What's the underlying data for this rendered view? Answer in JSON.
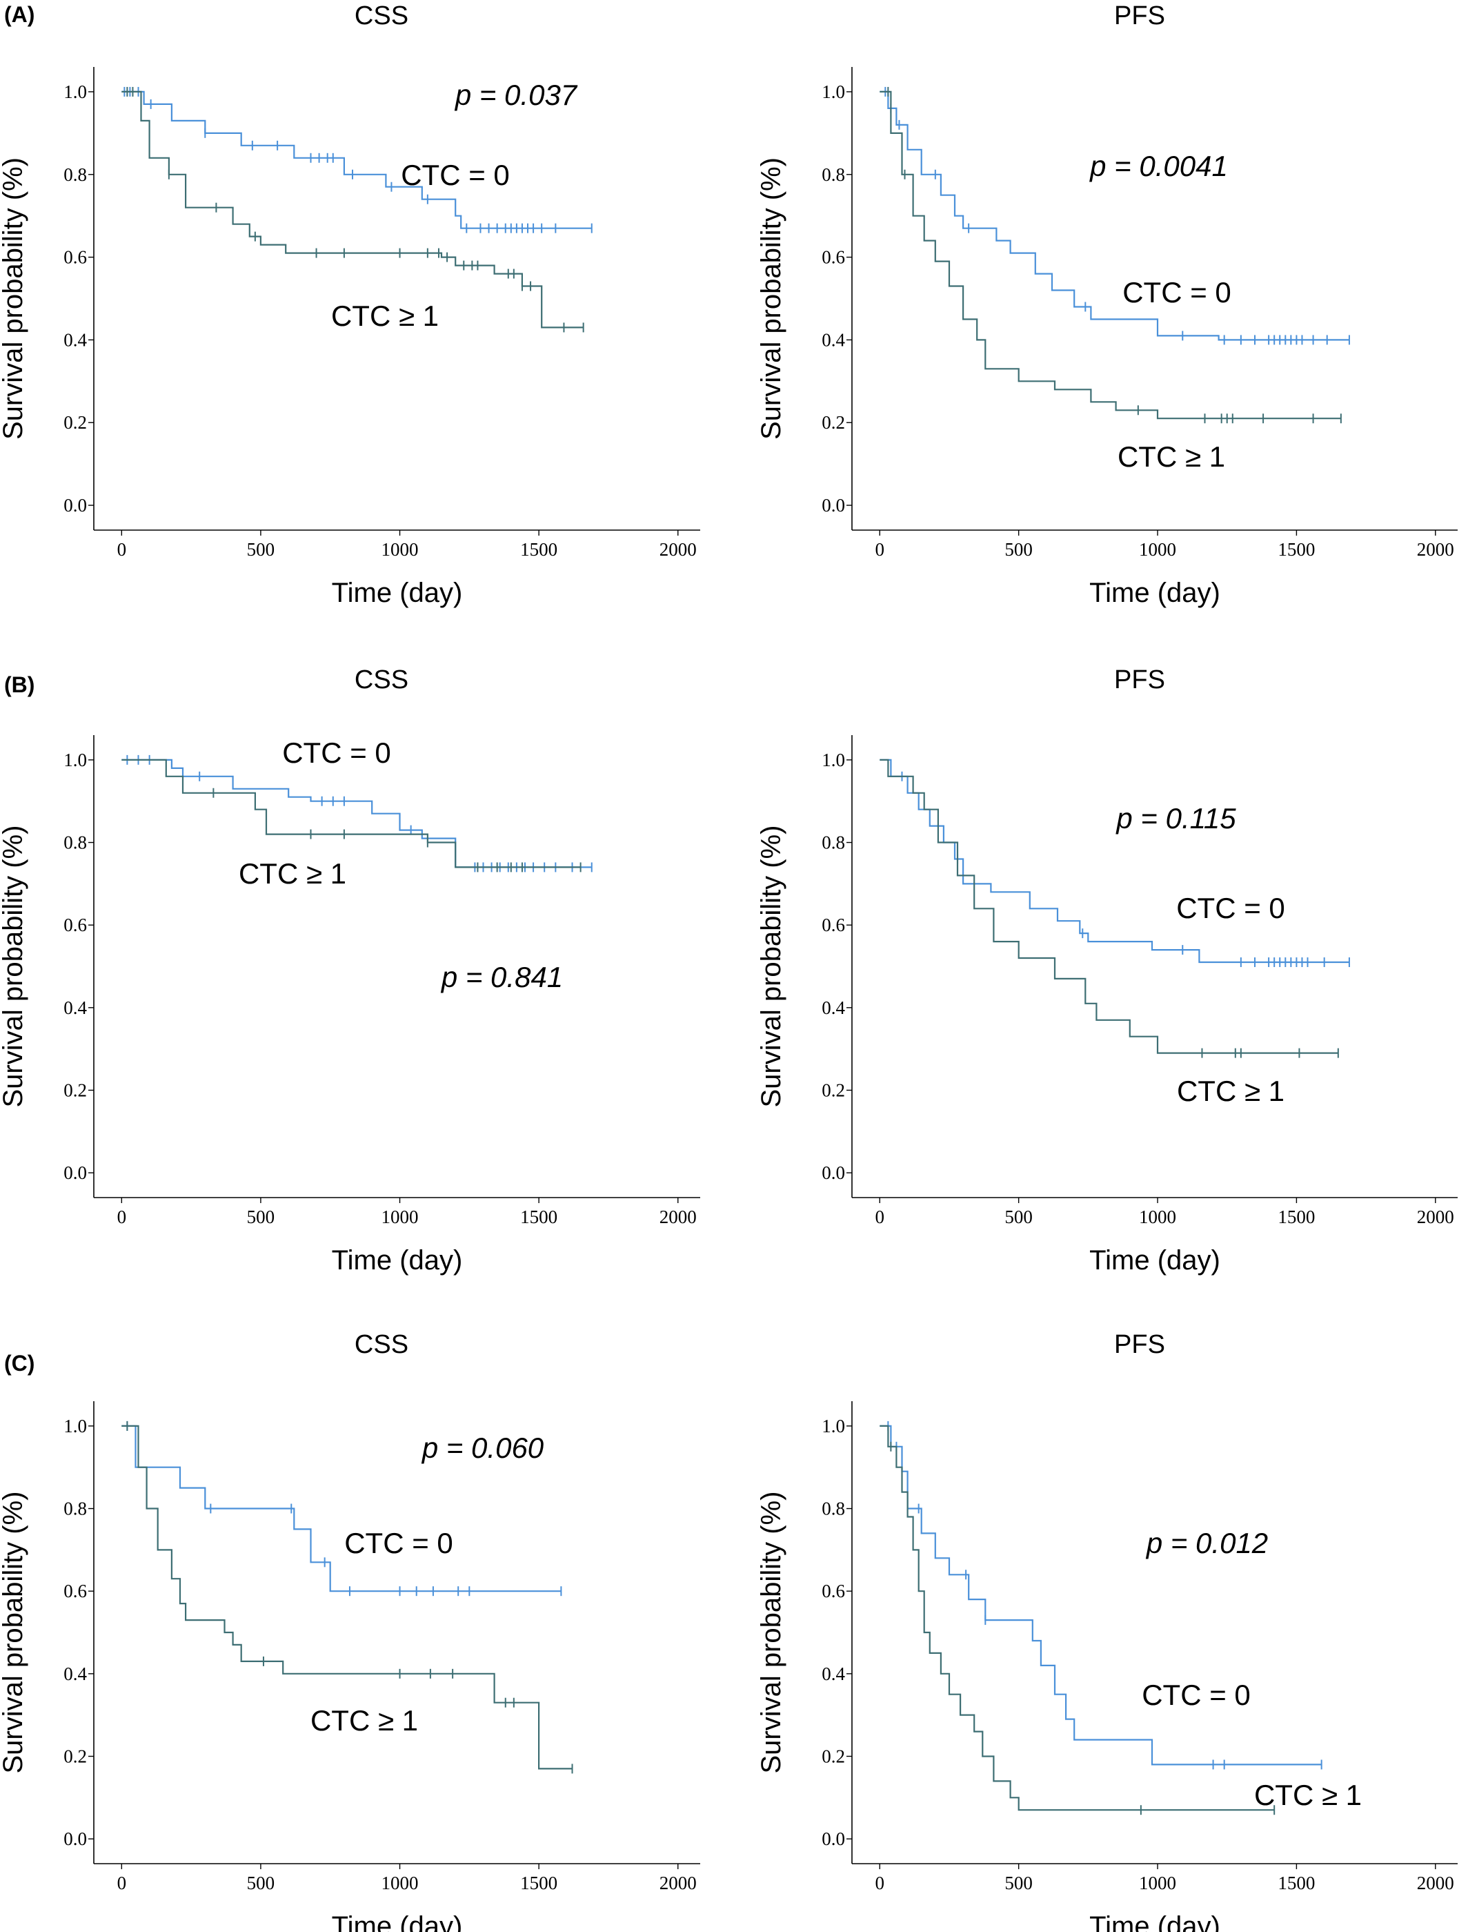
{
  "figure": {
    "panel_labels": [
      "(A)",
      "(B)",
      "(C)"
    ]
  },
  "chart_data": [
    {
      "type": "line",
      "panel": "(A)",
      "title": "CSS",
      "xlabel": "Time (day)",
      "ylabel": "Survival probability (%)",
      "xlim": [
        -100,
        2080
      ],
      "ylim": [
        -0.06,
        1.06
      ],
      "xticks": [
        "0",
        "500",
        "1000",
        "1500",
        "2000"
      ],
      "yticks": [
        "0.0",
        "0.2",
        "0.4",
        "0.6",
        "0.8",
        "1.0"
      ],
      "p_value": "p = 0.037",
      "series": [
        {
          "name": "CTC = 0",
          "color": "#4a90d9",
          "steps": [
            [
              0,
              1.0
            ],
            [
              80,
              0.97
            ],
            [
              180,
              0.93
            ],
            [
              300,
              0.9
            ],
            [
              430,
              0.87
            ],
            [
              620,
              0.84
            ],
            [
              800,
              0.8
            ],
            [
              950,
              0.77
            ],
            [
              1080,
              0.74
            ],
            [
              1200,
              0.7
            ],
            [
              1220,
              0.67
            ],
            [
              1690,
              0.67
            ]
          ],
          "censor": [
            10,
            30,
            60,
            105,
            300,
            470,
            560,
            680,
            710,
            740,
            760,
            830,
            970,
            1100,
            1240,
            1290,
            1320,
            1350,
            1380,
            1400,
            1420,
            1440,
            1460,
            1480,
            1510,
            1560,
            1690
          ]
        },
        {
          "name": "CTC ≥ 1",
          "color": "#3d6e73",
          "steps": [
            [
              0,
              1.0
            ],
            [
              70,
              0.93
            ],
            [
              100,
              0.84
            ],
            [
              170,
              0.8
            ],
            [
              230,
              0.72
            ],
            [
              400,
              0.68
            ],
            [
              460,
              0.65
            ],
            [
              500,
              0.63
            ],
            [
              590,
              0.61
            ],
            [
              1150,
              0.6
            ],
            [
              1200,
              0.58
            ],
            [
              1340,
              0.56
            ],
            [
              1440,
              0.53
            ],
            [
              1510,
              0.43
            ],
            [
              1660,
              0.43
            ]
          ],
          "censor": [
            20,
            40,
            170,
            340,
            480,
            700,
            800,
            1000,
            1100,
            1140,
            1170,
            1230,
            1260,
            1280,
            1390,
            1410,
            1440,
            1470,
            1590,
            1660
          ]
        }
      ]
    },
    {
      "type": "line",
      "panel": "(A)",
      "title": "PFS",
      "xlabel": "Time (day)",
      "ylabel": "Survival probability (%)",
      "xlim": [
        -100,
        2080
      ],
      "ylim": [
        -0.06,
        1.06
      ],
      "xticks": [
        "0",
        "500",
        "1000",
        "1500",
        "2000"
      ],
      "yticks": [
        "0.0",
        "0.2",
        "0.4",
        "0.6",
        "0.8",
        "1.0"
      ],
      "p_value": "p = 0.0041",
      "series": [
        {
          "name": "CTC = 0",
          "color": "#4a90d9",
          "steps": [
            [
              0,
              1.0
            ],
            [
              30,
              0.96
            ],
            [
              60,
              0.92
            ],
            [
              100,
              0.86
            ],
            [
              150,
              0.8
            ],
            [
              220,
              0.75
            ],
            [
              270,
              0.7
            ],
            [
              300,
              0.67
            ],
            [
              420,
              0.64
            ],
            [
              470,
              0.61
            ],
            [
              560,
              0.56
            ],
            [
              620,
              0.52
            ],
            [
              700,
              0.48
            ],
            [
              760,
              0.45
            ],
            [
              1000,
              0.41
            ],
            [
              1220,
              0.4
            ],
            [
              1690,
              0.4
            ]
          ],
          "censor": [
            20,
            40,
            70,
            200,
            320,
            740,
            1090,
            1240,
            1300,
            1350,
            1400,
            1420,
            1440,
            1460,
            1480,
            1500,
            1520,
            1560,
            1610,
            1690
          ]
        },
        {
          "name": "CTC ≥ 1",
          "color": "#3d6e73",
          "steps": [
            [
              0,
              1.0
            ],
            [
              40,
              0.9
            ],
            [
              80,
              0.8
            ],
            [
              120,
              0.7
            ],
            [
              160,
              0.64
            ],
            [
              200,
              0.59
            ],
            [
              250,
              0.53
            ],
            [
              300,
              0.45
            ],
            [
              350,
              0.4
            ],
            [
              380,
              0.33
            ],
            [
              500,
              0.3
            ],
            [
              630,
              0.28
            ],
            [
              760,
              0.25
            ],
            [
              850,
              0.23
            ],
            [
              1000,
              0.21
            ],
            [
              1660,
              0.21
            ]
          ],
          "censor": [
            30,
            90,
            930,
            1170,
            1230,
            1250,
            1270,
            1380,
            1560,
            1660
          ]
        }
      ]
    },
    {
      "type": "line",
      "panel": "(B)",
      "title": "CSS",
      "xlabel": "Time (day)",
      "ylabel": "Survival probability (%)",
      "xlim": [
        -100,
        2080
      ],
      "ylim": [
        -0.06,
        1.06
      ],
      "xticks": [
        "0",
        "500",
        "1000",
        "1500",
        "2000"
      ],
      "yticks": [
        "0.0",
        "0.2",
        "0.4",
        "0.6",
        "0.8",
        "1.0"
      ],
      "p_value": "p = 0.841",
      "series": [
        {
          "name": "CTC = 0",
          "color": "#4a90d9",
          "steps": [
            [
              0,
              1.0
            ],
            [
              180,
              0.98
            ],
            [
              220,
              0.96
            ],
            [
              400,
              0.93
            ],
            [
              600,
              0.91
            ],
            [
              680,
              0.9
            ],
            [
              900,
              0.87
            ],
            [
              1000,
              0.83
            ],
            [
              1080,
              0.81
            ],
            [
              1200,
              0.74
            ],
            [
              1690,
              0.74
            ]
          ],
          "censor": [
            20,
            60,
            100,
            280,
            720,
            760,
            800,
            1040,
            1270,
            1300,
            1330,
            1360,
            1390,
            1420,
            1450,
            1480,
            1520,
            1560,
            1620,
            1690
          ]
        },
        {
          "name": "CTC ≥ 1",
          "color": "#3d6e73",
          "steps": [
            [
              0,
              1.0
            ],
            [
              160,
              0.96
            ],
            [
              220,
              0.92
            ],
            [
              480,
              0.88
            ],
            [
              520,
              0.82
            ],
            [
              1100,
              0.8
            ],
            [
              1200,
              0.74
            ],
            [
              1650,
              0.74
            ]
          ],
          "censor": [
            330,
            680,
            800,
            1100,
            1280,
            1350,
            1400,
            1440,
            1650
          ]
        }
      ]
    },
    {
      "type": "line",
      "panel": "(B)",
      "title": "PFS",
      "xlabel": "Time (day)",
      "ylabel": "Survival probability (%)",
      "xlim": [
        -100,
        2080
      ],
      "ylim": [
        -0.06,
        1.06
      ],
      "xticks": [
        "0",
        "500",
        "1000",
        "1500",
        "2000"
      ],
      "yticks": [
        "0.0",
        "0.2",
        "0.4",
        "0.6",
        "0.8",
        "1.0"
      ],
      "p_value": "p = 0.115",
      "series": [
        {
          "name": "CTC = 0",
          "color": "#4a90d9",
          "steps": [
            [
              0,
              1.0
            ],
            [
              40,
              0.96
            ],
            [
              100,
              0.92
            ],
            [
              140,
              0.88
            ],
            [
              180,
              0.84
            ],
            [
              230,
              0.8
            ],
            [
              270,
              0.76
            ],
            [
              300,
              0.7
            ],
            [
              400,
              0.68
            ],
            [
              540,
              0.64
            ],
            [
              640,
              0.61
            ],
            [
              720,
              0.58
            ],
            [
              750,
              0.56
            ],
            [
              980,
              0.54
            ],
            [
              1150,
              0.51
            ],
            [
              1690,
              0.51
            ]
          ],
          "censor": [
            80,
            280,
            730,
            1090,
            1300,
            1350,
            1400,
            1420,
            1440,
            1460,
            1480,
            1500,
            1520,
            1540,
            1600,
            1690
          ]
        },
        {
          "name": "CTC ≥ 1",
          "color": "#3d6e73",
          "steps": [
            [
              0,
              1.0
            ],
            [
              30,
              0.96
            ],
            [
              120,
              0.92
            ],
            [
              160,
              0.88
            ],
            [
              210,
              0.8
            ],
            [
              280,
              0.72
            ],
            [
              340,
              0.64
            ],
            [
              410,
              0.56
            ],
            [
              500,
              0.52
            ],
            [
              630,
              0.47
            ],
            [
              740,
              0.41
            ],
            [
              780,
              0.37
            ],
            [
              900,
              0.33
            ],
            [
              1000,
              0.29
            ],
            [
              1650,
              0.29
            ]
          ],
          "censor": [
            1160,
            1280,
            1300,
            1510,
            1650
          ]
        }
      ]
    },
    {
      "type": "line",
      "panel": "(C)",
      "title": "CSS",
      "xlabel": "Time (day)",
      "ylabel": "Survival probability (%)",
      "xlim": [
        -100,
        2080
      ],
      "ylim": [
        -0.06,
        1.06
      ],
      "xticks": [
        "0",
        "500",
        "1000",
        "1500",
        "2000"
      ],
      "yticks": [
        "0.0",
        "0.2",
        "0.4",
        "0.6",
        "0.8",
        "1.0"
      ],
      "p_value": "p = 0.060",
      "series": [
        {
          "name": "CTC = 0",
          "color": "#4a90d9",
          "steps": [
            [
              0,
              1.0
            ],
            [
              50,
              0.9
            ],
            [
              210,
              0.85
            ],
            [
              300,
              0.8
            ],
            [
              620,
              0.75
            ],
            [
              680,
              0.67
            ],
            [
              750,
              0.6
            ],
            [
              1580,
              0.6
            ]
          ],
          "censor": [
            20,
            320,
            610,
            730,
            820,
            1000,
            1060,
            1120,
            1210,
            1250,
            1580
          ]
        },
        {
          "name": "CTC ≥ 1",
          "color": "#3d6e73",
          "steps": [
            [
              0,
              1.0
            ],
            [
              60,
              0.9
            ],
            [
              90,
              0.8
            ],
            [
              130,
              0.7
            ],
            [
              180,
              0.63
            ],
            [
              210,
              0.57
            ],
            [
              230,
              0.53
            ],
            [
              370,
              0.5
            ],
            [
              400,
              0.47
            ],
            [
              430,
              0.43
            ],
            [
              580,
              0.4
            ],
            [
              1340,
              0.33
            ],
            [
              1500,
              0.17
            ],
            [
              1620,
              0.17
            ]
          ],
          "censor": [
            20,
            510,
            1000,
            1110,
            1190,
            1380,
            1410,
            1620
          ]
        }
      ]
    },
    {
      "type": "line",
      "panel": "(C)",
      "title": "PFS",
      "xlabel": "Time (day)",
      "ylabel": "Survival probability (%)",
      "xlim": [
        -100,
        2080
      ],
      "ylim": [
        -0.06,
        1.06
      ],
      "xticks": [
        "0",
        "500",
        "1000",
        "1500",
        "2000"
      ],
      "yticks": [
        "0.0",
        "0.2",
        "0.4",
        "0.6",
        "0.8",
        "1.0"
      ],
      "p_value": "p = 0.012",
      "series": [
        {
          "name": "CTC = 0",
          "color": "#4a90d9",
          "steps": [
            [
              0,
              1.0
            ],
            [
              40,
              0.95
            ],
            [
              80,
              0.89
            ],
            [
              100,
              0.8
            ],
            [
              150,
              0.74
            ],
            [
              200,
              0.68
            ],
            [
              250,
              0.64
            ],
            [
              320,
              0.58
            ],
            [
              380,
              0.53
            ],
            [
              550,
              0.48
            ],
            [
              580,
              0.42
            ],
            [
              630,
              0.35
            ],
            [
              670,
              0.29
            ],
            [
              700,
              0.24
            ],
            [
              980,
              0.18
            ],
            [
              1590,
              0.18
            ]
          ],
          "censor": [
            30,
            60,
            140,
            310,
            380,
            1200,
            1240,
            1590
          ]
        },
        {
          "name": "CTC ≥ 1",
          "color": "#3d6e73",
          "steps": [
            [
              0,
              1.0
            ],
            [
              30,
              0.95
            ],
            [
              60,
              0.9
            ],
            [
              80,
              0.84
            ],
            [
              100,
              0.78
            ],
            [
              120,
              0.7
            ],
            [
              140,
              0.6
            ],
            [
              160,
              0.5
            ],
            [
              180,
              0.45
            ],
            [
              220,
              0.4
            ],
            [
              250,
              0.35
            ],
            [
              290,
              0.3
            ],
            [
              340,
              0.26
            ],
            [
              370,
              0.2
            ],
            [
              410,
              0.14
            ],
            [
              470,
              0.1
            ],
            [
              500,
              0.07
            ],
            [
              1420,
              0.07
            ]
          ],
          "censor": [
            40,
            940,
            1420
          ]
        }
      ]
    }
  ]
}
